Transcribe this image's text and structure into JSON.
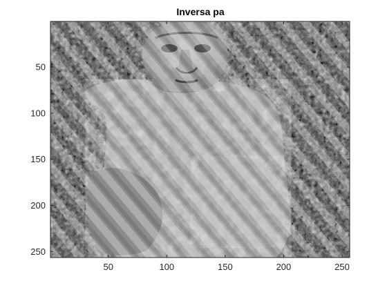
{
  "title": "Inversa pa",
  "image": {
    "description_icon": "grayscale-photo-stone-figure-with-diagonal-stripes",
    "colormap": "gray"
  },
  "axes": {
    "x_ticks": [
      {
        "value": 50,
        "label": "50"
      },
      {
        "value": 100,
        "label": "100"
      },
      {
        "value": 150,
        "label": "150"
      },
      {
        "value": 200,
        "label": "200"
      },
      {
        "value": 250,
        "label": "250"
      }
    ],
    "y_ticks": [
      {
        "value": 50,
        "label": "50"
      },
      {
        "value": 100,
        "label": "100"
      },
      {
        "value": 150,
        "label": "150"
      },
      {
        "value": 200,
        "label": "200"
      },
      {
        "value": 250,
        "label": "250"
      }
    ],
    "xlim": [
      0.5,
      256.5
    ],
    "ylim": [
      0.5,
      256.5
    ],
    "y_reversed": true,
    "box": true
  }
}
